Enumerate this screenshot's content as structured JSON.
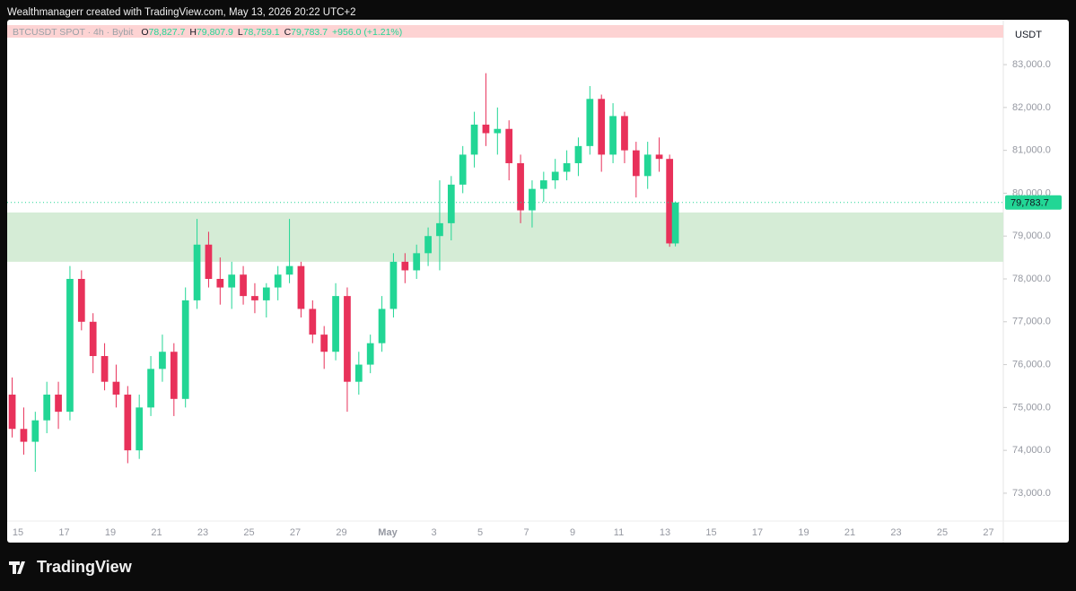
{
  "chart_data": {
    "type": "candlestick",
    "attribution": "Wealthmanagerr created with TradingView.com, May 13, 2026 20:22 UTC+2",
    "symbol": "BTCUSDT SPOT · 4h · Bybit",
    "ohlc_legend": [
      {
        "key": "O",
        "text": "78,827.7"
      },
      {
        "key": "H",
        "text": "79,807.9"
      },
      {
        "key": "L",
        "text": "78,759.1"
      },
      {
        "key": "C",
        "text": "79,783.7"
      }
    ],
    "change": "+956.0 (+1.21%)",
    "currency": "USDT",
    "brand": "TradingView",
    "up_color": "#22d695",
    "down_color": "#e8315a",
    "zone": {
      "low": 78400,
      "high": 79550,
      "color": "#d5ecd6"
    },
    "last_price": {
      "value": 79783.7,
      "label": "79,783.7"
    },
    "xlim": [
      -0.466,
      42.64
    ],
    "ylim": [
      72350,
      83629
    ],
    "yticks": [
      {
        "value": 73000,
        "label": "73,000.0"
      },
      {
        "value": 74000,
        "label": "74,000.0"
      },
      {
        "value": 75000,
        "label": "75,000.0"
      },
      {
        "value": 76000,
        "label": "76,000.0"
      },
      {
        "value": 77000,
        "label": "77,000.0"
      },
      {
        "value": 78000,
        "label": "78,000.0"
      },
      {
        "value": 79000,
        "label": "79,000.0"
      },
      {
        "value": 80000,
        "label": "80,000.0"
      },
      {
        "value": 81000,
        "label": "81,000.0"
      },
      {
        "value": 82000,
        "label": "82,000.0"
      },
      {
        "value": 83000,
        "label": "83,000.0"
      }
    ],
    "xticks": [
      {
        "value": 0,
        "label": "15"
      },
      {
        "value": 2,
        "label": "17"
      },
      {
        "value": 4,
        "label": "19"
      },
      {
        "value": 6,
        "label": "21"
      },
      {
        "value": 8,
        "label": "23"
      },
      {
        "value": 10,
        "label": "25"
      },
      {
        "value": 12,
        "label": "27"
      },
      {
        "value": 14,
        "label": "29"
      },
      {
        "value": 16,
        "label": "May"
      },
      {
        "value": 18,
        "label": "3"
      },
      {
        "value": 20,
        "label": "5"
      },
      {
        "value": 22,
        "label": "7"
      },
      {
        "value": 24,
        "label": "9"
      },
      {
        "value": 26,
        "label": "11"
      },
      {
        "value": 28,
        "label": "13"
      },
      {
        "value": 30,
        "label": "15"
      },
      {
        "value": 32,
        "label": "17"
      },
      {
        "value": 34,
        "label": "19"
      },
      {
        "value": 36,
        "label": "21"
      },
      {
        "value": 38,
        "label": "23"
      },
      {
        "value": 40,
        "label": "25"
      },
      {
        "value": 42,
        "label": "27"
      }
    ],
    "x": [
      -0.25,
      0.25,
      0.75,
      1.25,
      1.75,
      2.25,
      2.75,
      3.25,
      3.75,
      4.25,
      4.75,
      5.25,
      5.75,
      6.25,
      6.75,
      7.25,
      7.75,
      8.25,
      8.75,
      9.25,
      9.75,
      10.25,
      10.75,
      11.25,
      11.75,
      12.25,
      12.75,
      13.25,
      13.75,
      14.25,
      14.75,
      15.25,
      15.75,
      16.25,
      16.75,
      17.25,
      17.75,
      18.25,
      18.75,
      19.25,
      19.75,
      20.25,
      20.75,
      21.25,
      21.75,
      22.25,
      22.75,
      23.25,
      23.75,
      24.25,
      24.75,
      25.25,
      25.75,
      26.25,
      26.75,
      27.25,
      27.75,
      28.2,
      28.45
    ],
    "candles": [
      [
        75300,
        75700,
        74300,
        74500
      ],
      [
        74500,
        75000,
        73900,
        74200
      ],
      [
        74200,
        74900,
        73500,
        74700
      ],
      [
        74700,
        75600,
        74400,
        75300
      ],
      [
        75300,
        75600,
        74500,
        74900
      ],
      [
        74900,
        78300,
        74700,
        78000
      ],
      [
        78000,
        78200,
        76800,
        77000
      ],
      [
        77000,
        77200,
        75800,
        76200
      ],
      [
        76200,
        76500,
        75400,
        75600
      ],
      [
        75600,
        76000,
        75000,
        75300
      ],
      [
        75300,
        75500,
        73700,
        74000
      ],
      [
        74000,
        75300,
        73800,
        75000
      ],
      [
        75000,
        76200,
        74800,
        75900
      ],
      [
        75900,
        76700,
        75600,
        76300
      ],
      [
        76300,
        76500,
        74800,
        75200
      ],
      [
        75200,
        77800,
        75000,
        77500
      ],
      [
        77500,
        79400,
        77300,
        78800
      ],
      [
        78800,
        79100,
        77800,
        78000
      ],
      [
        78000,
        78500,
        77400,
        77800
      ],
      [
        77800,
        78400,
        77300,
        78100
      ],
      [
        78100,
        78300,
        77400,
        77600
      ],
      [
        77600,
        77900,
        77200,
        77500
      ],
      [
        77500,
        77900,
        77100,
        77800
      ],
      [
        77800,
        78300,
        77500,
        78100
      ],
      [
        78100,
        79400,
        77900,
        78300
      ],
      [
        78300,
        78400,
        77100,
        77300
      ],
      [
        77300,
        77500,
        76500,
        76700
      ],
      [
        76700,
        76900,
        75900,
        76300
      ],
      [
        76300,
        77900,
        76100,
        77600
      ],
      [
        77600,
        77800,
        74900,
        75600
      ],
      [
        75600,
        76300,
        75300,
        76000
      ],
      [
        76000,
        76700,
        75800,
        76500
      ],
      [
        76500,
        77600,
        76300,
        77300
      ],
      [
        77300,
        78600,
        77100,
        78400
      ],
      [
        78400,
        78600,
        77900,
        78200
      ],
      [
        78200,
        78800,
        78000,
        78600
      ],
      [
        78600,
        79200,
        78300,
        79000
      ],
      [
        79000,
        80300,
        78200,
        79300
      ],
      [
        79300,
        80400,
        78900,
        80200
      ],
      [
        80200,
        81100,
        80000,
        80900
      ],
      [
        80900,
        81900,
        80600,
        81600
      ],
      [
        81600,
        82800,
        81100,
        81400
      ],
      [
        81400,
        82000,
        80900,
        81500
      ],
      [
        81500,
        81700,
        80300,
        80700
      ],
      [
        80700,
        80900,
        79300,
        79600
      ],
      [
        79600,
        80300,
        79200,
        80100
      ],
      [
        80100,
        80500,
        79800,
        80300
      ],
      [
        80300,
        80800,
        80100,
        80500
      ],
      [
        80500,
        81000,
        80300,
        80700
      ],
      [
        80700,
        81300,
        80400,
        81100
      ],
      [
        81100,
        82500,
        80900,
        82200
      ],
      [
        82200,
        82300,
        80500,
        80900
      ],
      [
        80900,
        82100,
        80700,
        81800
      ],
      [
        81800,
        81900,
        80700,
        81000
      ],
      [
        81000,
        81200,
        79900,
        80400
      ],
      [
        80400,
        81200,
        80100,
        80900
      ],
      [
        80900,
        81300,
        80500,
        80800
      ],
      [
        80800,
        80900,
        78750,
        78827.7
      ],
      [
        78827.7,
        79807.9,
        78759.1,
        79783.7
      ]
    ]
  }
}
